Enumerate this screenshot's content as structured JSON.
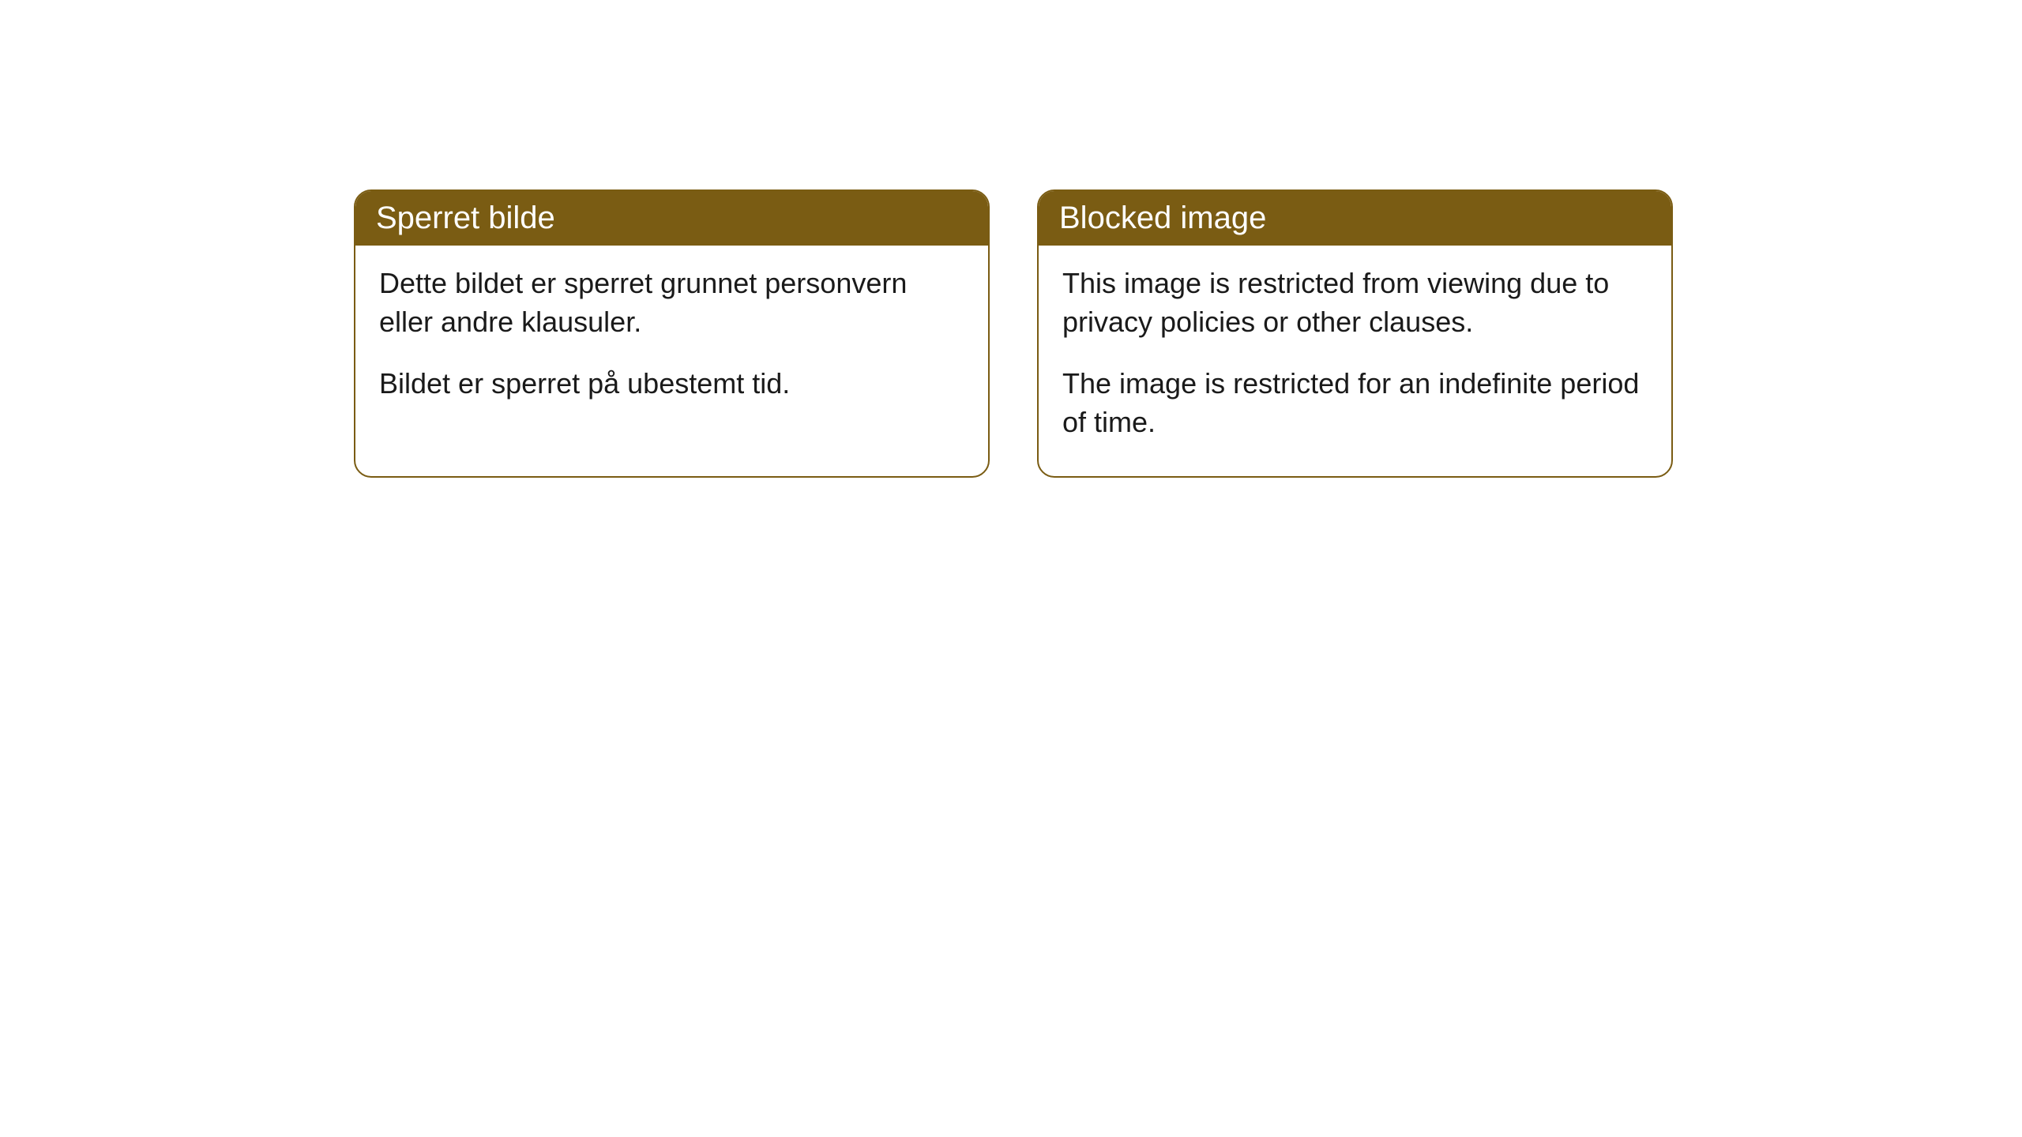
{
  "cards": [
    {
      "title": "Sperret bilde",
      "paragraph1": "Dette bildet er sperret grunnet personvern eller andre klausuler.",
      "paragraph2": "Bildet er sperret på ubestemt tid."
    },
    {
      "title": "Blocked image",
      "paragraph1": "This image is restricted from viewing due to privacy policies or other clauses.",
      "paragraph2": "The image is restricted for an indefinite period of time."
    }
  ],
  "style": {
    "header_background": "#7a5c13",
    "header_text_color": "#ffffff",
    "border_color": "#7a5c13",
    "body_background": "#ffffff",
    "body_text_color": "#1a1a1a",
    "border_radius": 22,
    "title_fontsize": 40,
    "body_fontsize": 36
  }
}
